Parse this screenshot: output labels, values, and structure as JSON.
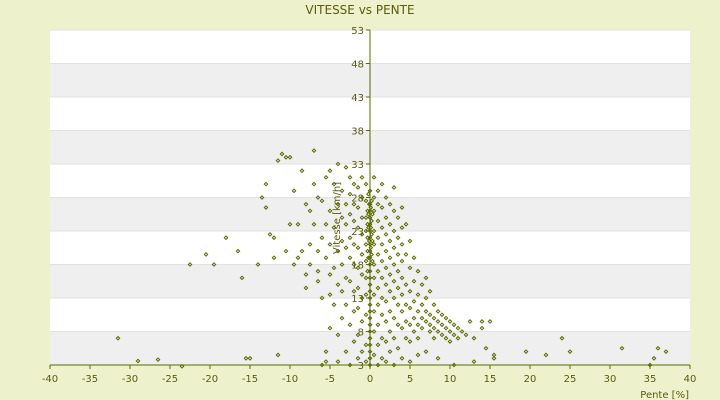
{
  "chart_data": {
    "type": "scatter",
    "title": "VITESSE vs PENTE",
    "xlabel": "Pente [%]",
    "ylabel": "Vitesse [km/h]",
    "xlim": [
      -40,
      40
    ],
    "ylim": [
      3,
      53
    ],
    "x_ticks": [
      -40,
      -35,
      -30,
      -25,
      -20,
      -15,
      -10,
      -5,
      0,
      5,
      10,
      15,
      20,
      25,
      30,
      35,
      40
    ],
    "y_ticks": [
      3,
      8,
      13,
      18,
      23,
      28,
      33,
      38,
      43,
      48,
      53
    ],
    "grid": "horizontal bands",
    "legend": "none",
    "colors": {
      "point": "#5a6a00",
      "axis": "#5a6a00",
      "band_dark": "#efefef",
      "band_light": "#ffffff",
      "background": "#eef2cc"
    },
    "points": [
      [
        -31.5,
        7.0
      ],
      [
        -29.0,
        3.6
      ],
      [
        -26.5,
        3.8
      ],
      [
        -23.5,
        2.8
      ],
      [
        -22.5,
        18.0
      ],
      [
        -20.5,
        19.5
      ],
      [
        -19.5,
        18.0
      ],
      [
        -18.0,
        22.0
      ],
      [
        -16.5,
        20.0
      ],
      [
        -16.0,
        16.0
      ],
      [
        -15.5,
        4.0
      ],
      [
        -15.0,
        4.0
      ],
      [
        -14.0,
        18.0
      ],
      [
        -13.5,
        28.0
      ],
      [
        -13.0,
        30.0
      ],
      [
        -13.0,
        26.5
      ],
      [
        -12.5,
        22.5
      ],
      [
        -12.0,
        22.0
      ],
      [
        -12.0,
        19.0
      ],
      [
        -11.5,
        33.5
      ],
      [
        -11.5,
        4.5
      ],
      [
        -11.0,
        34.5
      ],
      [
        -10.5,
        34.0
      ],
      [
        -10.5,
        20.0
      ],
      [
        -10.0,
        34.0
      ],
      [
        -10.0,
        24.0
      ],
      [
        -9.5,
        29.0
      ],
      [
        -9.5,
        18.0
      ],
      [
        -9.0,
        24.0
      ],
      [
        -9.0,
        19.0
      ],
      [
        -8.5,
        32.0
      ],
      [
        -8.5,
        20.0
      ],
      [
        -8.0,
        27.0
      ],
      [
        -8.0,
        16.5
      ],
      [
        -8.0,
        14.5
      ],
      [
        -7.5,
        26.0
      ],
      [
        -7.5,
        21.0
      ],
      [
        -7.5,
        18.0
      ],
      [
        -7.0,
        35.0
      ],
      [
        -7.0,
        30.0
      ],
      [
        -7.0,
        24.0
      ],
      [
        -6.5,
        28.0
      ],
      [
        -6.5,
        20.0
      ],
      [
        -6.5,
        17.0
      ],
      [
        -6.5,
        15.5
      ],
      [
        -6.0,
        27.5
      ],
      [
        -6.0,
        22.0
      ],
      [
        -6.0,
        13.0
      ],
      [
        -6.0,
        3.0
      ],
      [
        -5.5,
        31.0
      ],
      [
        -5.5,
        24.0
      ],
      [
        -5.5,
        19.0
      ],
      [
        -5.5,
        5.0
      ],
      [
        -5.5,
        3.5
      ],
      [
        -5.0,
        32.0
      ],
      [
        -5.0,
        26.0
      ],
      [
        -5.0,
        21.0
      ],
      [
        -5.0,
        16.5
      ],
      [
        -5.0,
        13.5
      ],
      [
        -5.0,
        8.5
      ],
      [
        -4.5,
        30.0
      ],
      [
        -4.5,
        23.5
      ],
      [
        -4.5,
        17.5
      ],
      [
        -4.5,
        12.0
      ],
      [
        -4.0,
        33.0
      ],
      [
        -4.0,
        27.0
      ],
      [
        -4.0,
        20.0
      ],
      [
        -4.0,
        15.0
      ],
      [
        -4.0,
        7.5
      ],
      [
        -4.0,
        3.5
      ],
      [
        -3.5,
        29.0
      ],
      [
        -3.5,
        25.0
      ],
      [
        -3.5,
        21.5
      ],
      [
        -3.5,
        18.0
      ],
      [
        -3.5,
        14.0
      ],
      [
        -3.5,
        10.0
      ],
      [
        -3.0,
        32.5
      ],
      [
        -3.0,
        27.0
      ],
      [
        -3.0,
        24.0
      ],
      [
        -3.0,
        20.5
      ],
      [
        -3.0,
        16.0
      ],
      [
        -3.0,
        12.0
      ],
      [
        -3.0,
        5.0
      ],
      [
        -2.5,
        31.0
      ],
      [
        -2.5,
        28.5
      ],
      [
        -2.5,
        25.5
      ],
      [
        -2.5,
        22.0
      ],
      [
        -2.5,
        19.0
      ],
      [
        -2.5,
        15.5
      ],
      [
        -2.5,
        9.0
      ],
      [
        -2.5,
        3.0
      ],
      [
        -2.0,
        30.0
      ],
      [
        -2.0,
        27.0
      ],
      [
        -2.0,
        24.5
      ],
      [
        -2.0,
        21.0
      ],
      [
        -2.0,
        18.0
      ],
      [
        -2.0,
        14.0
      ],
      [
        -2.0,
        11.0
      ],
      [
        -2.0,
        6.5
      ],
      [
        -1.5,
        29.5
      ],
      [
        -1.5,
        26.5
      ],
      [
        -1.5,
        23.5
      ],
      [
        -1.5,
        20.5
      ],
      [
        -1.5,
        17.5
      ],
      [
        -1.5,
        14.5
      ],
      [
        -1.5,
        11.5
      ],
      [
        -1.5,
        7.5
      ],
      [
        -1.5,
        4.0
      ],
      [
        -1.0,
        31.0
      ],
      [
        -1.0,
        28.0
      ],
      [
        -1.0,
        25.0
      ],
      [
        -1.0,
        22.5
      ],
      [
        -1.0,
        19.5
      ],
      [
        -1.0,
        16.5
      ],
      [
        -1.0,
        13.0
      ],
      [
        -1.0,
        9.5
      ],
      [
        -1.0,
        5.0
      ],
      [
        -0.5,
        30.0
      ],
      [
        -0.5,
        27.5
      ],
      [
        -0.5,
        25.0
      ],
      [
        -0.5,
        23.0
      ],
      [
        -0.5,
        21.0
      ],
      [
        -0.5,
        18.5
      ],
      [
        -0.5,
        16.0
      ],
      [
        -0.5,
        13.5
      ],
      [
        -0.5,
        10.5
      ],
      [
        -0.5,
        6.0
      ],
      [
        -0.5,
        3.5
      ],
      [
        -0.3,
        26.0
      ],
      [
        -0.3,
        24.0
      ],
      [
        -0.3,
        22.0
      ],
      [
        -0.3,
        20.0
      ],
      [
        -0.3,
        17.0
      ],
      [
        -0.2,
        28.5
      ],
      [
        -0.2,
        25.5
      ],
      [
        -0.2,
        23.5
      ],
      [
        -0.2,
        19.0
      ],
      [
        -0.1,
        27.0
      ],
      [
        -0.1,
        21.5
      ],
      [
        0,
        29.0
      ],
      [
        0,
        27.0
      ],
      [
        0,
        26.0
      ],
      [
        0,
        25.0
      ],
      [
        0,
        24.0
      ],
      [
        0,
        23.0
      ],
      [
        0,
        22.0
      ],
      [
        0,
        21.0
      ],
      [
        0,
        20.0
      ],
      [
        0,
        19.0
      ],
      [
        0,
        18.0
      ],
      [
        0,
        17.0
      ],
      [
        0,
        16.0
      ],
      [
        0,
        15.0
      ],
      [
        0,
        14.0
      ],
      [
        0,
        13.0
      ],
      [
        0,
        12.0
      ],
      [
        0,
        11.0
      ],
      [
        0,
        10.0
      ],
      [
        0,
        9.0
      ],
      [
        0,
        8.0
      ],
      [
        0,
        7.0
      ],
      [
        0,
        6.0
      ],
      [
        0,
        5.0
      ],
      [
        0,
        4.0
      ],
      [
        0,
        3.0
      ],
      [
        0,
        2.5
      ],
      [
        0.1,
        26.5
      ],
      [
        0.1,
        23.5
      ],
      [
        0.1,
        20.5
      ],
      [
        0.2,
        27.5
      ],
      [
        0.2,
        24.5
      ],
      [
        0.2,
        22.5
      ],
      [
        0.2,
        19.5
      ],
      [
        0.3,
        25.5
      ],
      [
        0.3,
        21.5
      ],
      [
        0.3,
        18.5
      ],
      [
        0.5,
        31.0
      ],
      [
        0.5,
        28.0
      ],
      [
        0.5,
        26.0
      ],
      [
        0.5,
        23.0
      ],
      [
        0.5,
        21.0
      ],
      [
        0.5,
        18.0
      ],
      [
        0.5,
        16.0
      ],
      [
        0.5,
        13.5
      ],
      [
        0.5,
        11.0
      ],
      [
        0.5,
        8.0
      ],
      [
        0.5,
        4.5
      ],
      [
        1.0,
        29.0
      ],
      [
        1.0,
        27.0
      ],
      [
        1.0,
        24.5
      ],
      [
        1.0,
        22.0
      ],
      [
        1.0,
        19.5
      ],
      [
        1.0,
        17.0
      ],
      [
        1.0,
        14.5
      ],
      [
        1.0,
        12.0
      ],
      [
        1.0,
        9.0
      ],
      [
        1.0,
        6.0
      ],
      [
        1.0,
        3.0
      ],
      [
        1.5,
        30.0
      ],
      [
        1.5,
        26.5
      ],
      [
        1.5,
        23.5
      ],
      [
        1.5,
        21.0
      ],
      [
        1.5,
        18.5
      ],
      [
        1.5,
        16.0
      ],
      [
        1.5,
        13.0
      ],
      [
        1.5,
        10.5
      ],
      [
        1.5,
        7.0
      ],
      [
        1.5,
        4.0
      ],
      [
        2.0,
        28.0
      ],
      [
        2.0,
        25.0
      ],
      [
        2.0,
        22.5
      ],
      [
        2.0,
        20.0
      ],
      [
        2.0,
        17.5
      ],
      [
        2.0,
        15.0
      ],
      [
        2.0,
        12.5
      ],
      [
        2.0,
        9.5
      ],
      [
        2.0,
        6.5
      ],
      [
        2.0,
        3.5
      ],
      [
        2.5,
        27.0
      ],
      [
        2.5,
        24.0
      ],
      [
        2.5,
        21.5
      ],
      [
        2.5,
        19.0
      ],
      [
        2.5,
        16.5
      ],
      [
        2.5,
        14.0
      ],
      [
        2.5,
        11.0
      ],
      [
        2.5,
        8.0
      ],
      [
        2.5,
        5.0
      ],
      [
        3.0,
        29.5
      ],
      [
        3.0,
        26.0
      ],
      [
        3.0,
        23.0
      ],
      [
        3.0,
        20.5
      ],
      [
        3.0,
        18.0
      ],
      [
        3.0,
        15.5
      ],
      [
        3.0,
        13.0
      ],
      [
        3.0,
        10.0
      ],
      [
        3.0,
        7.0
      ],
      [
        3.0,
        3.0
      ],
      [
        3.5,
        25.0
      ],
      [
        3.5,
        22.0
      ],
      [
        3.5,
        19.5
      ],
      [
        3.5,
        17.0
      ],
      [
        3.5,
        14.5
      ],
      [
        3.5,
        12.0
      ],
      [
        3.5,
        9.0
      ],
      [
        3.5,
        5.5
      ],
      [
        4.0,
        26.5
      ],
      [
        4.0,
        23.5
      ],
      [
        4.0,
        21.0
      ],
      [
        4.0,
        18.5
      ],
      [
        4.0,
        16.0
      ],
      [
        4.0,
        13.5
      ],
      [
        4.0,
        11.0
      ],
      [
        4.0,
        8.5
      ],
      [
        4.0,
        4.0
      ],
      [
        4.5,
        24.0
      ],
      [
        4.5,
        19.5
      ],
      [
        4.5,
        15.0
      ],
      [
        4.5,
        12.0
      ],
      [
        4.5,
        9.5
      ],
      [
        4.5,
        7.0
      ],
      [
        5.0,
        21.5
      ],
      [
        5.0,
        17.5
      ],
      [
        5.0,
        14.0
      ],
      [
        5.0,
        11.5
      ],
      [
        5.0,
        9.0
      ],
      [
        5.0,
        6.5
      ],
      [
        5.0,
        3.5
      ],
      [
        5.5,
        19.0
      ],
      [
        5.5,
        15.5
      ],
      [
        5.5,
        12.5
      ],
      [
        5.5,
        10.0
      ],
      [
        5.5,
        8.0
      ],
      [
        6.0,
        17.0
      ],
      [
        6.0,
        13.5
      ],
      [
        6.0,
        11.0
      ],
      [
        6.0,
        9.0
      ],
      [
        6.0,
        7.0
      ],
      [
        6.0,
        4.5
      ],
      [
        6.5,
        15.0
      ],
      [
        6.5,
        12.0
      ],
      [
        6.5,
        10.0
      ],
      [
        6.5,
        8.5
      ],
      [
        7.0,
        16.0
      ],
      [
        7.0,
        13.0
      ],
      [
        7.0,
        11.0
      ],
      [
        7.0,
        9.5
      ],
      [
        7.0,
        5.0
      ],
      [
        7.5,
        14.0
      ],
      [
        7.5,
        10.5
      ],
      [
        7.5,
        9.0
      ],
      [
        7.5,
        8.0
      ],
      [
        8.0,
        12.0
      ],
      [
        8.0,
        10.0
      ],
      [
        8.0,
        8.5
      ],
      [
        8.0,
        7.0
      ],
      [
        8.5,
        11.0
      ],
      [
        8.5,
        9.5
      ],
      [
        8.5,
        8.0
      ],
      [
        8.5,
        4.0
      ],
      [
        9.0,
        10.5
      ],
      [
        9.0,
        9.0
      ],
      [
        9.0,
        7.5
      ],
      [
        9.5,
        10.0
      ],
      [
        9.5,
        8.5
      ],
      [
        9.5,
        7.0
      ],
      [
        10.0,
        9.5
      ],
      [
        10.0,
        8.0
      ],
      [
        10.0,
        6.5
      ],
      [
        10.5,
        9.0
      ],
      [
        10.5,
        7.5
      ],
      [
        10.5,
        3.0
      ],
      [
        11.0,
        8.5
      ],
      [
        11.0,
        7.0
      ],
      [
        11.5,
        8.0
      ],
      [
        12.0,
        7.5
      ],
      [
        12.5,
        9.5
      ],
      [
        13.0,
        7.0
      ],
      [
        13.0,
        3.5
      ],
      [
        14.0,
        9.5
      ],
      [
        14.0,
        8.5
      ],
      [
        14.5,
        5.5
      ],
      [
        15.0,
        9.5
      ],
      [
        15.5,
        4.5
      ],
      [
        15.5,
        4.0
      ],
      [
        19.5,
        5.0
      ],
      [
        22.0,
        4.5
      ],
      [
        24.0,
        7.0
      ],
      [
        25.0,
        5.0
      ],
      [
        31.5,
        5.5
      ],
      [
        35.0,
        3.0
      ],
      [
        35.5,
        4.0
      ],
      [
        36.0,
        5.5
      ],
      [
        37.0,
        5.0
      ]
    ]
  }
}
